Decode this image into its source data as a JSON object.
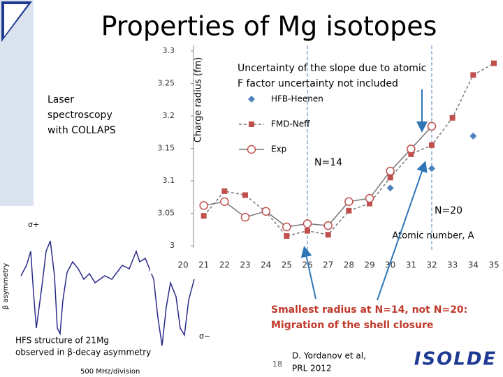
{
  "slide": {
    "title": "Properties of Mg isotopes",
    "method": [
      "Laser",
      "spectroscopy",
      "with  COLLAPS"
    ],
    "hfs_caption": [
      "HFS structure of 21Mg",
      "observed in β-decay asymmetry"
    ],
    "hfs_ylabel": "β asymmetry",
    "hfs_xlabel": "500 MHz/division",
    "sigma_plus": "σ+",
    "sigma_minus": "σ−",
    "page_number": "18",
    "reference": [
      "D. Yordanov et al,",
      "PRL 2012"
    ],
    "logo": "ISOLDE"
  },
  "chart_data": {
    "type": "line",
    "y_label": "Charge radius (fm)",
    "x_label": "Atomic number, A",
    "x": [
      21,
      22,
      23,
      24,
      25,
      26,
      27,
      28,
      29,
      30,
      31,
      32,
      33,
      34,
      35
    ],
    "xlim": [
      20,
      35
    ],
    "xticks": [
      20,
      21,
      22,
      23,
      24,
      25,
      26,
      27,
      28,
      29,
      30,
      31,
      32,
      33,
      34,
      35
    ],
    "ylim": [
      3,
      3.3
    ],
    "yticks": [
      3,
      3.05,
      3.1,
      3.15,
      3.2,
      3.25,
      3.3
    ],
    "series": [
      {
        "name": "HFB-Heenen",
        "color": "#4f81bd",
        "marker": "diamond",
        "line": "none",
        "values": [
          null,
          null,
          null,
          null,
          null,
          null,
          null,
          null,
          null,
          3.089,
          null,
          3.119,
          null,
          3.169,
          null
        ]
      },
      {
        "name": "FMD-Neff",
        "color": "#c0504d",
        "marker": "square",
        "line": "dashed",
        "values": [
          3.046,
          3.084,
          3.078,
          3.052,
          3.015,
          3.023,
          3.017,
          3.054,
          3.065,
          3.105,
          3.141,
          3.155,
          3.197,
          3.263,
          3.281
        ]
      },
      {
        "name": "Exp",
        "color": "#c0504d",
        "marker": "circle",
        "line": "solid",
        "values": [
          3.062,
          3.068,
          3.044,
          3.053,
          3.029,
          3.034,
          3.031,
          3.068,
          3.073,
          3.115,
          3.149,
          3.184,
          null,
          null,
          null
        ]
      }
    ],
    "markers_at": [
      26,
      32
    ],
    "annotations": {
      "uncertainty": [
        "Uncertainty of the slope due to atomic",
        "F factor uncertainty not included"
      ],
      "n14": "N=14",
      "n20": "N=20",
      "conclusion": [
        "Smallest radius at N=14, not N=20:",
        "Migration of the shell closure"
      ]
    }
  }
}
